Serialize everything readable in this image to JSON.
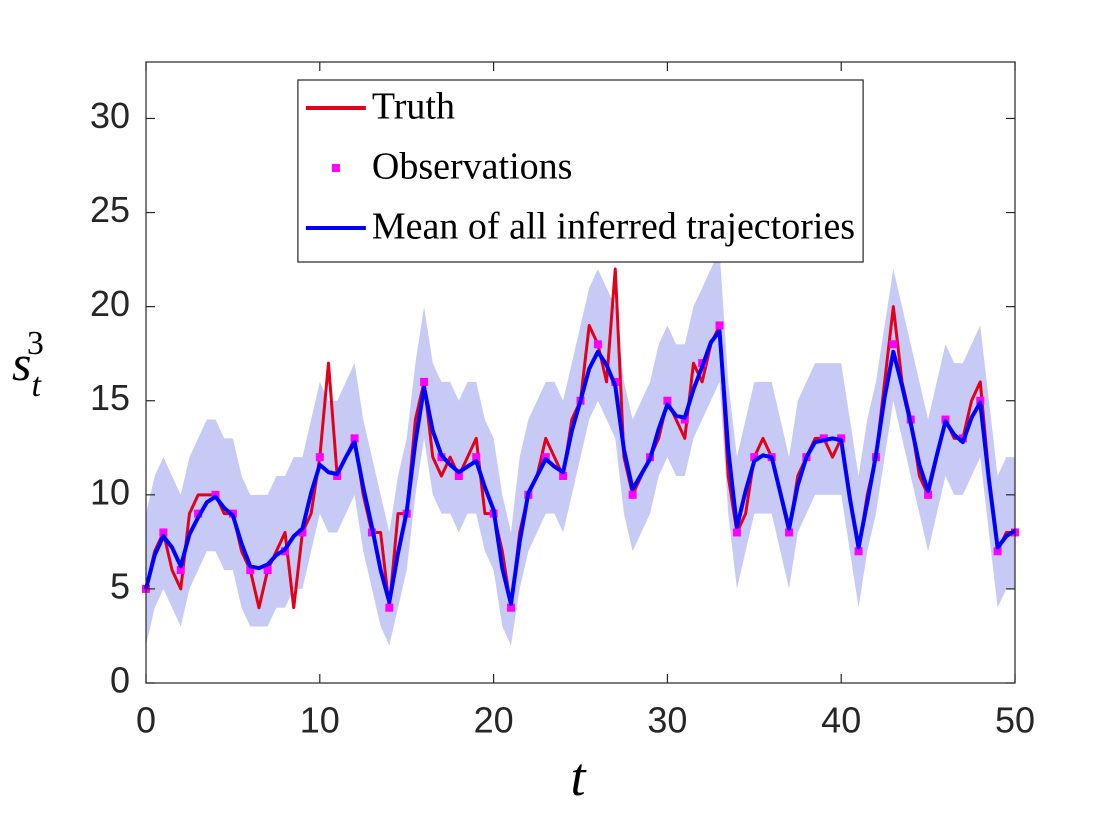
{
  "chart_data": {
    "type": "line",
    "xlabel": "t",
    "ylabel": {
      "base": "s",
      "sub": "t",
      "sup": "3"
    },
    "xlim": [
      0,
      50
    ],
    "ylim": [
      0,
      33
    ],
    "xticks": [
      0,
      10,
      20,
      30,
      40,
      50
    ],
    "yticks": [
      0,
      5,
      10,
      15,
      20,
      25,
      30
    ],
    "legend": "top",
    "x": [
      0,
      0.5,
      1,
      1.5,
      2,
      2.5,
      3,
      3.5,
      4,
      4.5,
      5,
      5.5,
      6,
      6.5,
      7,
      7.5,
      8,
      8.5,
      9,
      9.5,
      10,
      10.5,
      11,
      11.5,
      12,
      12.5,
      13,
      13.5,
      14,
      14.5,
      15,
      15.5,
      16,
      16.5,
      17,
      17.5,
      18,
      18.5,
      19,
      19.5,
      20,
      20.5,
      21,
      21.5,
      22,
      22.5,
      23,
      23.5,
      24,
      24.5,
      25,
      25.5,
      26,
      26.5,
      27,
      27.5,
      28,
      28.5,
      29,
      29.5,
      30,
      30.5,
      31,
      31.5,
      32,
      32.5,
      33,
      33.5,
      34,
      34.5,
      35,
      35.5,
      36,
      36.5,
      37,
      37.5,
      38,
      38.5,
      39,
      39.5,
      40,
      40.5,
      41,
      41.5,
      42,
      42.5,
      43,
      43.5,
      44,
      44.5,
      45,
      45.5,
      46,
      46.5,
      47,
      47.5,
      48,
      48.5,
      49,
      49.5,
      50
    ],
    "band": {
      "color": "#c8caf6",
      "lower": [
        2,
        4,
        5,
        4,
        3,
        5,
        6,
        7,
        7,
        6,
        6,
        4,
        3,
        3,
        3,
        4,
        4,
        5,
        5,
        7,
        9,
        8,
        8,
        9,
        10,
        7,
        5,
        3,
        2,
        4,
        6,
        10,
        13,
        10,
        9,
        9,
        8,
        9,
        9,
        7,
        6,
        3,
        2,
        5,
        7,
        8,
        9,
        9,
        8,
        10,
        12,
        14,
        15,
        14,
        13,
        9,
        7,
        8,
        9,
        11,
        12,
        11,
        11,
        13,
        14,
        15,
        16,
        9,
        5,
        7,
        9,
        9,
        9,
        7,
        5,
        8,
        9,
        10,
        10,
        10,
        10,
        7,
        4,
        7,
        9,
        12,
        15,
        13,
        11,
        9,
        7,
        9,
        11,
        10,
        10,
        11,
        12,
        8,
        4,
        5,
        5
      ],
      "upper": [
        9,
        11,
        12,
        11,
        10,
        12,
        13,
        14,
        14,
        13,
        13,
        11,
        10,
        10,
        10,
        11,
        11,
        12,
        12,
        14,
        16,
        15,
        15,
        16,
        17,
        14,
        12,
        10,
        8,
        11,
        13,
        17,
        20,
        17,
        16,
        16,
        15,
        16,
        16,
        14,
        13,
        10,
        8,
        12,
        14,
        15,
        16,
        16,
        15,
        17,
        19,
        21,
        22,
        21,
        20,
        16,
        14,
        15,
        16,
        18,
        19,
        18,
        18,
        20,
        21,
        22,
        23,
        16,
        12,
        14,
        16,
        16,
        16,
        14,
        12,
        15,
        16,
        17,
        17,
        17,
        17,
        14,
        11,
        14,
        16,
        19,
        22,
        20,
        18,
        16,
        14,
        16,
        18,
        17,
        17,
        18,
        19,
        15,
        11,
        12,
        12
      ]
    },
    "series": [
      {
        "name": "Truth",
        "color": "#e3001b",
        "values": [
          5,
          7,
          8,
          6,
          5,
          9,
          10,
          10,
          10,
          9,
          9,
          7,
          6,
          4,
          6,
          7,
          8,
          4,
          8,
          9,
          12,
          17,
          11,
          12,
          13,
          10,
          8,
          8,
          4,
          9,
          9,
          14,
          16,
          12,
          11,
          12,
          11,
          12,
          13,
          9,
          9,
          7,
          4,
          8,
          10,
          11,
          13,
          12,
          11,
          14,
          15,
          19,
          18,
          16,
          22,
          12,
          10,
          11,
          12,
          13,
          15,
          14,
          13,
          17,
          16,
          18,
          19,
          11,
          8,
          9,
          12,
          13,
          12,
          10,
          8,
          11,
          12,
          13,
          13,
          12,
          13,
          10,
          7,
          10,
          12,
          16,
          20,
          16,
          14,
          11,
          10,
          12,
          14,
          13,
          13,
          15,
          16,
          11,
          7,
          8,
          8
        ]
      },
      {
        "name": "Mean of all inferred trajectories",
        "color": "#0000ff",
        "values": [
          5,
          6.8,
          7.8,
          7.2,
          6.2,
          7.9,
          8.8,
          9.6,
          9.9,
          9.3,
          8.9,
          7.4,
          6.2,
          6.1,
          6.3,
          6.8,
          7.1,
          7.8,
          8.2,
          10.1,
          11.6,
          11.2,
          11.1,
          12.0,
          12.8,
          10.4,
          8.3,
          6.0,
          4.3,
          6.9,
          9.1,
          12.8,
          15.7,
          13.4,
          12.1,
          11.6,
          11.2,
          11.5,
          11.8,
          10.4,
          9.2,
          6.1,
          4.2,
          7.5,
          10.1,
          11.0,
          11.9,
          11.5,
          11.2,
          13.4,
          15.0,
          16.7,
          17.6,
          16.9,
          15.8,
          12.4,
          10.3,
          11.1,
          11.9,
          13.5,
          14.8,
          14.2,
          14.1,
          15.6,
          16.8,
          18.1,
          18.7,
          12.4,
          8.3,
          10.2,
          11.8,
          12.1,
          12.0,
          10.1,
          8.2,
          10.5,
          12.0,
          12.8,
          12.9,
          13.0,
          12.9,
          9.8,
          7.2,
          9.6,
          12.1,
          15.2,
          17.6,
          15.8,
          13.8,
          11.6,
          10.2,
          12.1,
          13.9,
          13.2,
          12.8,
          14.1,
          14.9,
          10.8,
          7.2,
          7.8,
          8.1
        ]
      }
    ],
    "observations": {
      "name": "Observations",
      "color": "#ff00ff",
      "x": [
        0,
        1,
        2,
        3,
        4,
        5,
        6,
        7,
        8,
        9,
        10,
        11,
        12,
        13,
        14,
        15,
        16,
        17,
        18,
        19,
        20,
        21,
        22,
        23,
        24,
        25,
        26,
        27,
        28,
        29,
        30,
        31,
        32,
        33,
        34,
        35,
        36,
        37,
        38,
        39,
        40,
        41,
        42,
        43,
        44,
        45,
        46,
        47,
        48,
        49,
        50
      ],
      "values": [
        5,
        8,
        6,
        9,
        10,
        9,
        6,
        6,
        7,
        8,
        12,
        11,
        13,
        8,
        4,
        9,
        16,
        12,
        11,
        12,
        9,
        4,
        10,
        12,
        11,
        15,
        18,
        16,
        10,
        12,
        15,
        14,
        17,
        19,
        8,
        12,
        12,
        8,
        12,
        13,
        13,
        7,
        12,
        18,
        14,
        10,
        14,
        13,
        15,
        7,
        8
      ]
    }
  }
}
